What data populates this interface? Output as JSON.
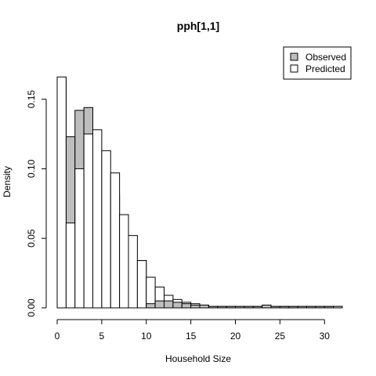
{
  "chart_data": {
    "type": "bar",
    "title": "pph[1,1]",
    "xlabel": "Household Size",
    "ylabel": "Density",
    "xlim": [
      0,
      32
    ],
    "ylim": [
      0,
      0.165
    ],
    "bin_width": 1,
    "x_ticks": [
      0,
      5,
      10,
      15,
      20,
      25,
      30
    ],
    "y_ticks": [
      0.0,
      0.05,
      0.1,
      0.15
    ],
    "x_tick_labels": [
      "0",
      "5",
      "10",
      "15",
      "20",
      "25",
      "30"
    ],
    "y_tick_labels": [
      "0.00",
      "0.05",
      "0.10",
      "0.15"
    ],
    "legend": {
      "position": "top-right",
      "entries": [
        {
          "name": "Observed",
          "fill": "#bebebe"
        },
        {
          "name": "Predicted",
          "fill": "#ffffff"
        }
      ]
    },
    "series": [
      {
        "name": "Observed",
        "fill": "#bebebe",
        "bin_starts": [
          0,
          1,
          2,
          3,
          4,
          5,
          6,
          7,
          8,
          9,
          31
        ],
        "values": [
          0.165,
          0.123,
          0.142,
          0.144,
          0.113,
          0.094,
          0.081,
          0.052,
          0.026,
          0.034,
          0.001
        ]
      },
      {
        "name": "Predicted",
        "fill": "#ffffff",
        "bin_starts": [
          0,
          1,
          2,
          3,
          4,
          5,
          6,
          7,
          8,
          9,
          10,
          11,
          12,
          13,
          14,
          15,
          16,
          17,
          18,
          19,
          20,
          21,
          22,
          23,
          24,
          25,
          26,
          27,
          28,
          29,
          30,
          31
        ],
        "values": [
          0.166,
          0.061,
          0.1,
          0.125,
          0.128,
          0.113,
          0.097,
          0.067,
          0.052,
          0.034,
          0.022,
          0.015,
          0.009,
          0.006,
          0.004,
          0.003,
          0.002,
          0.001,
          0.001,
          0.001,
          0.001,
          0.001,
          0.001,
          0.001,
          0.001,
          0.001,
          0.001,
          0.001,
          0.001,
          0.001,
          0.001,
          0.001
        ]
      },
      {
        "name": "Observed",
        "fill": "#bebebe",
        "bin_starts": [
          10,
          11,
          12,
          13,
          14,
          15,
          16,
          17,
          18,
          19,
          20,
          21,
          22,
          23,
          24,
          25,
          26,
          27,
          28,
          29,
          30
        ],
        "values": [
          0.003,
          0.005,
          0.005,
          0.004,
          0.003,
          0.002,
          0.002,
          0.001,
          0.001,
          0.001,
          0.001,
          0.001,
          0.001,
          0.002,
          0.001,
          0.001,
          0.001,
          0.001,
          0.001,
          0.001,
          0.001
        ]
      }
    ]
  }
}
